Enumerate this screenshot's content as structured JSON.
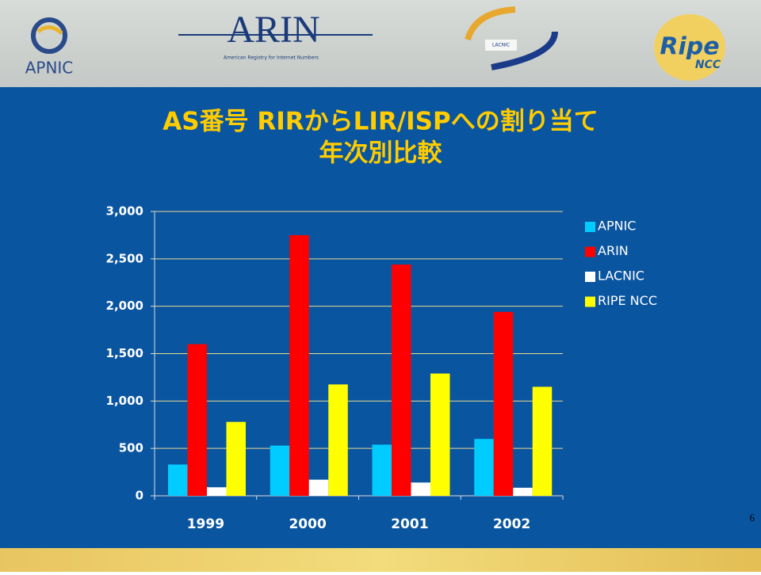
{
  "logos": {
    "apnic": "APNIC",
    "arin": "ARIN",
    "arin_tagline": "American Registry for Internet Numbers",
    "lacnic": "LACNIC",
    "ripe": "Ripe",
    "ncc": "NCC"
  },
  "page_number": "6",
  "chart_data": {
    "type": "bar",
    "title": "AS番号 RIRからLIR/ISPへの割り当て",
    "subtitle": "年次別比較",
    "categories": [
      "1999",
      "2000",
      "2001",
      "2002"
    ],
    "series": [
      {
        "name": "APNIC",
        "color": "#00ccff",
        "values": [
          330,
          530,
          540,
          600
        ]
      },
      {
        "name": "ARIN",
        "color": "#ff0000",
        "values": [
          1600,
          2750,
          2440,
          1940
        ]
      },
      {
        "name": "LACNIC",
        "color": "#ffffff",
        "values": [
          90,
          170,
          140,
          85
        ]
      },
      {
        "name": "RIPE NCC",
        "color": "#ffff00",
        "values": [
          780,
          1175,
          1290,
          1150
        ]
      }
    ],
    "ylim": [
      0,
      3000
    ],
    "yticks": [
      0,
      500,
      {
        "value": 1000,
        "label": "1,000"
      },
      {
        "value": 1500,
        "label": "1,500"
      },
      {
        "value": 2000,
        "label": "2,000"
      },
      {
        "value": 2500,
        "label": "2,500"
      },
      {
        "value": 3000,
        "label": "3,000"
      }
    ],
    "grid": true,
    "legend": "right"
  }
}
